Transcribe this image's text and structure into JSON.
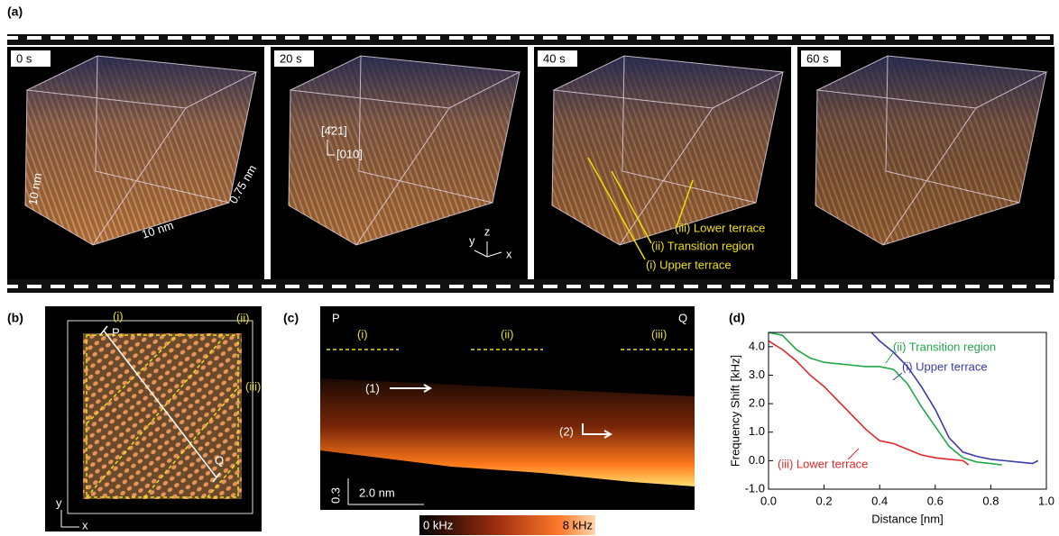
{
  "panel_a": {
    "label": "(a)",
    "frames": [
      "0 s",
      "20 s",
      "40 s",
      "60 s"
    ],
    "width_label": "10 nm",
    "length_label": "10 nm",
    "depth_label": "0.75 nm",
    "direction_1": "[4̄21]",
    "direction_2": "[010]",
    "axis_z": "z",
    "axis_y": "y",
    "axis_x": "x",
    "region_3": "(iii) Lower terrace",
    "region_2": "(ii) Transition region",
    "region_1": "(i) Upper terrace"
  },
  "panel_b": {
    "label": "(b)",
    "region_1": "(i)",
    "region_2": "(ii)",
    "region_3": "(iii)",
    "point_p": "P",
    "point_q": "Q",
    "axis_y": "y",
    "axis_x": "x"
  },
  "panel_c": {
    "label": "(c)",
    "point_p": "P",
    "point_q": "Q",
    "region_1": "(i)",
    "region_2": "(ii)",
    "region_3": "(iii)",
    "marker_1": "(1)",
    "marker_2": "(2)",
    "scale_vertical": "0.3",
    "scale_horizontal": "2.0 nm",
    "colorbar_min": "0 kHz",
    "colorbar_max": "8 kHz"
  },
  "chart_data": {
    "type": "line",
    "label": "(d)",
    "xlabel": "Distance [nm]",
    "ylabel": "Frequency Shift [kHz]",
    "xlim": [
      0,
      1
    ],
    "ylim": [
      -1,
      4.5
    ],
    "xticks": [
      {
        "value": 0,
        "label": "0.0"
      },
      {
        "value": 0.2,
        "label": "0.2"
      },
      {
        "value": 0.4,
        "label": "0.4"
      },
      {
        "value": 0.6,
        "label": "0.6"
      },
      {
        "value": 0.8,
        "label": "0.8"
      },
      {
        "value": 1,
        "label": "1.0"
      }
    ],
    "yticks": [
      {
        "value": -1,
        "label": "-1.0"
      },
      {
        "value": 0,
        "label": "0.0"
      },
      {
        "value": 1,
        "label": "1.0"
      },
      {
        "value": 2,
        "label": "2.0"
      },
      {
        "value": 3,
        "label": "3.0"
      },
      {
        "value": 4,
        "label": "4.0"
      }
    ],
    "series": [
      {
        "name": "(ii) Transition region",
        "color": "#22a64a",
        "x": [
          0,
          0.05,
          0.1,
          0.15,
          0.2,
          0.25,
          0.3,
          0.35,
          0.4,
          0.45,
          0.5,
          0.55,
          0.6,
          0.65,
          0.7,
          0.75,
          0.8,
          0.84
        ],
        "values": [
          4.5,
          4.4,
          3.9,
          3.6,
          3.45,
          3.4,
          3.35,
          3.3,
          3.3,
          3.2,
          2.7,
          1.9,
          1.2,
          0.5,
          0.1,
          -0.05,
          -0.1,
          -0.15
        ]
      },
      {
        "name": "(i) Upper terrace",
        "color": "#3a3aa8",
        "x": [
          0.37,
          0.4,
          0.45,
          0.5,
          0.55,
          0.6,
          0.65,
          0.7,
          0.75,
          0.8,
          0.85,
          0.9,
          0.95,
          0.97
        ],
        "values": [
          4.5,
          4.2,
          3.8,
          3.3,
          2.6,
          1.8,
          0.8,
          0.3,
          0.15,
          0.05,
          0,
          -0.05,
          -0.1,
          0
        ]
      },
      {
        "name": "(iii) Lower terrace",
        "color": "#e02828",
        "x": [
          0,
          0.05,
          0.1,
          0.15,
          0.2,
          0.25,
          0.3,
          0.35,
          0.4,
          0.45,
          0.5,
          0.55,
          0.6,
          0.65,
          0.7,
          0.72
        ],
        "values": [
          4.2,
          3.9,
          3.5,
          3.0,
          2.6,
          2.1,
          1.6,
          1.1,
          0.7,
          0.6,
          0.4,
          0.2,
          0.1,
          0.05,
          0,
          -0.15
        ]
      }
    ]
  }
}
